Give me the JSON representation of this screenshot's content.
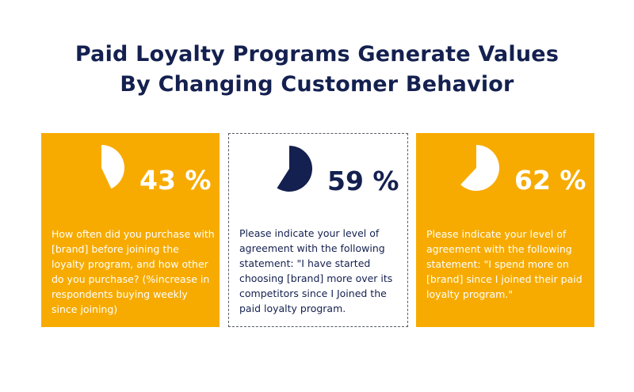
{
  "title": {
    "line1": "Paid Loyalty Programs Generate Values",
    "line2": "By Changing Customer Behavior"
  },
  "colors": {
    "orange": "#f7ab00",
    "navy": "#14204f",
    "white": "#ffffff"
  },
  "chart_data": [
    {
      "type": "pie",
      "value": 43,
      "label": "43 %",
      "description": "How often did you purchase with [brand] before joining the loyalty program, and how other do you purchase? (%increase in respondents buying weekly since joining)"
    },
    {
      "type": "pie",
      "value": 59,
      "label": "59 %",
      "description": "Please indicate your level of agreement with the following statement: \"I have started choosing [brand] more over its competitors since I Joined the paid loyalty program."
    },
    {
      "type": "pie",
      "value": 62,
      "label": "62 %",
      "description": "Please indicate your level of agreement with the following statement: \"I spend more on [brand] since I joined their paid loyalty program.\""
    }
  ]
}
